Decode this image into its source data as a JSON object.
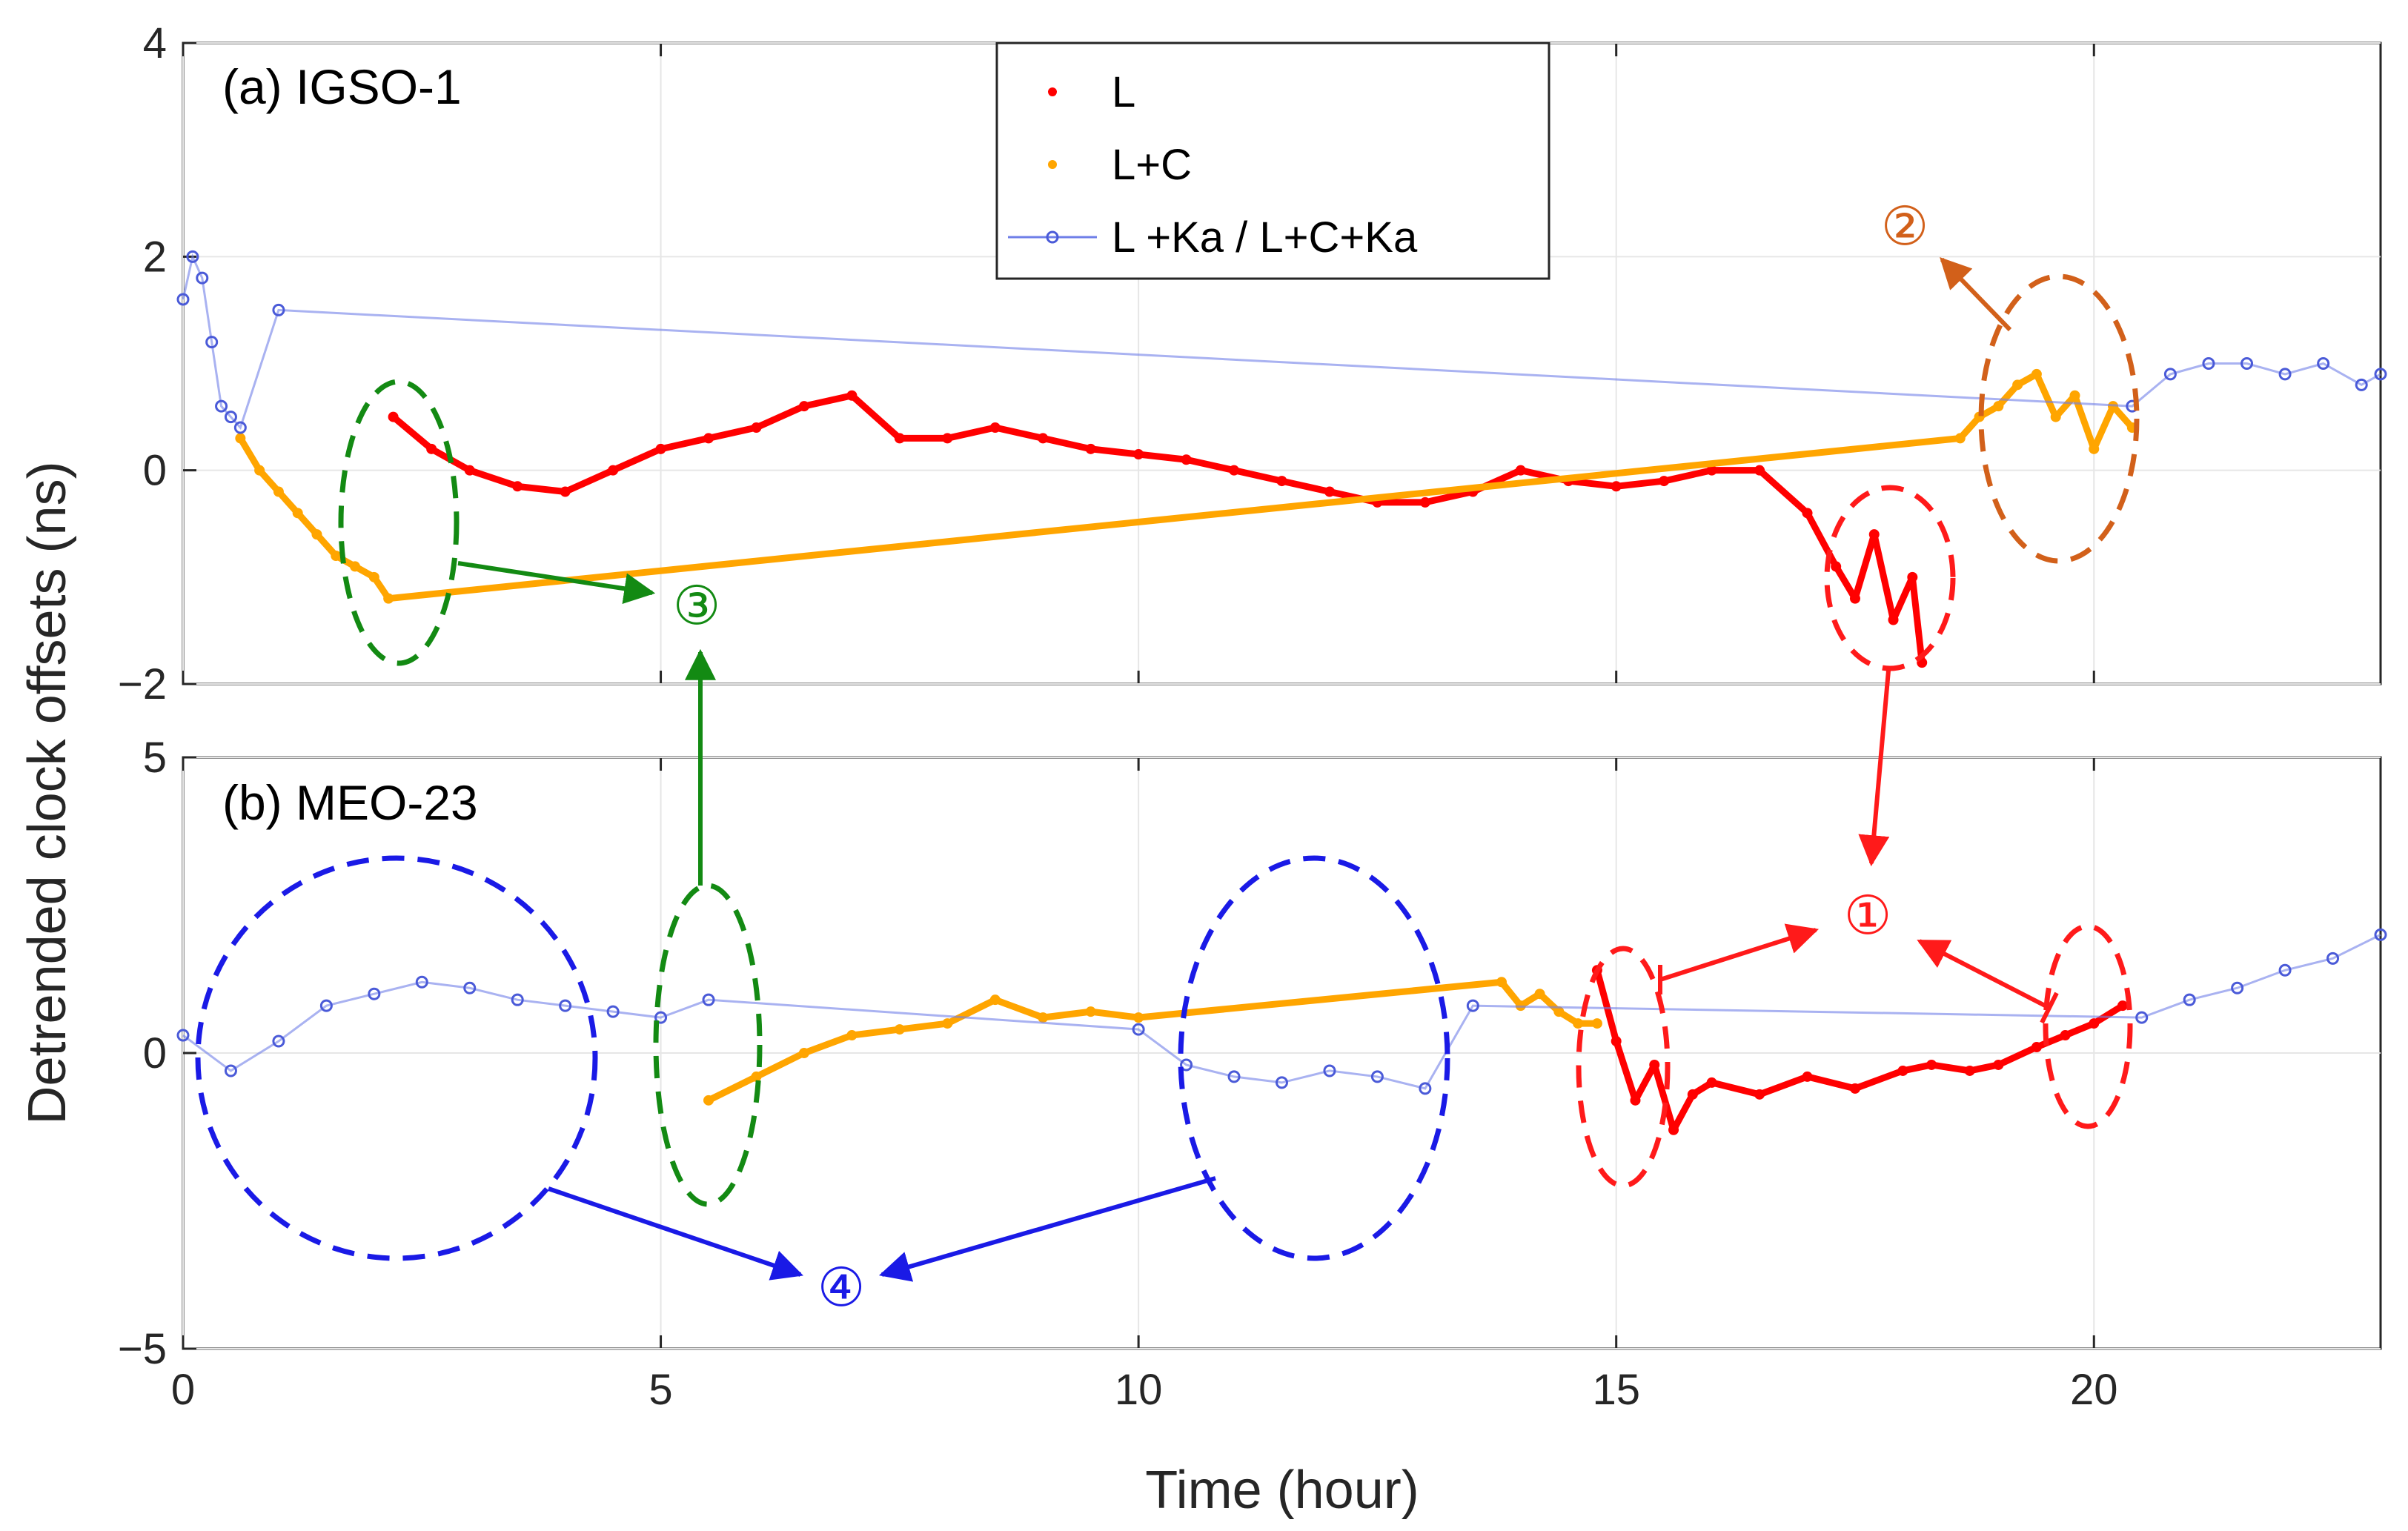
{
  "chart_data": {
    "type": "scatter",
    "xlabel": "Time (hour)",
    "ylabel": "Detrended  clock offsets (ns)",
    "xlim": [
      0,
      23
    ],
    "x_ticks": [
      "0",
      "5",
      "10",
      "15",
      "20"
    ],
    "legend": {
      "position": "top-center",
      "entries": [
        {
          "label": "L",
          "color": "#ff0000",
          "marker": "dot"
        },
        {
          "label": "L+C",
          "color": "#ffa500",
          "marker": "dot"
        },
        {
          "label": "L +Ka / L+C+Ka",
          "color": "#6f7fe8",
          "marker": "line-circle"
        }
      ]
    },
    "panels": [
      {
        "title": "(a) IGSO-1",
        "ylim": [
          -2,
          4
        ],
        "y_ticks": [
          "−2",
          "0",
          "2",
          "4"
        ],
        "series": [
          {
            "name": "L",
            "color": "#ff0000",
            "x": [
              2.2,
              2.6,
              3.0,
              3.5,
              4.0,
              4.5,
              5.0,
              5.5,
              6.0,
              6.5,
              7.0,
              7.5,
              8.0,
              8.5,
              9.0,
              9.5,
              10.0,
              10.5,
              11.0,
              11.5,
              12.0,
              12.5,
              13.0,
              13.5,
              14.0,
              14.5,
              15.0,
              15.5,
              16.0,
              16.5,
              17.0,
              17.3,
              17.5,
              17.7,
              17.9,
              18.1,
              18.2
            ],
            "y": [
              0.5,
              0.2,
              0.0,
              -0.15,
              -0.2,
              0.0,
              0.2,
              0.3,
              0.4,
              0.6,
              0.7,
              0.3,
              0.3,
              0.4,
              0.3,
              0.2,
              0.15,
              0.1,
              0.0,
              -0.1,
              -0.2,
              -0.3,
              -0.3,
              -0.2,
              0.0,
              -0.1,
              -0.15,
              -0.1,
              0.0,
              0.0,
              -0.4,
              -0.9,
              -1.2,
              -0.6,
              -1.4,
              -1.0,
              -1.8
            ]
          },
          {
            "name": "L+C",
            "color": "#ffa500",
            "x": [
              0.6,
              0.8,
              1.0,
              1.2,
              1.4,
              1.6,
              1.8,
              2.0,
              2.15,
              18.6,
              18.8,
              19.0,
              19.2,
              19.4,
              19.6,
              19.8,
              20.0,
              20.2,
              20.4
            ],
            "y": [
              0.3,
              0.0,
              -0.2,
              -0.4,
              -0.6,
              -0.8,
              -0.9,
              -1.0,
              -1.2,
              0.3,
              0.5,
              0.6,
              0.8,
              0.9,
              0.5,
              0.7,
              0.2,
              0.6,
              0.4
            ]
          },
          {
            "name": "L +Ka / L+C+Ka",
            "color": "#6f7fe8",
            "x": [
              0.0,
              0.1,
              0.2,
              0.3,
              0.4,
              0.5,
              0.6,
              1.0,
              20.4,
              20.8,
              21.2,
              21.6,
              22.0,
              22.4,
              22.8,
              23.0
            ],
            "y": [
              1.6,
              2.0,
              1.8,
              1.2,
              0.6,
              0.5,
              0.4,
              1.5,
              0.6,
              0.9,
              1.0,
              1.0,
              0.9,
              1.0,
              0.8,
              0.9
            ]
          }
        ]
      },
      {
        "title": "(b) MEO-23",
        "ylim": [
          -5,
          5
        ],
        "y_ticks": [
          "−5",
          "0",
          "5"
        ],
        "series": [
          {
            "name": "L",
            "color": "#ff0000",
            "x": [
              14.8,
              15.0,
              15.2,
              15.4,
              15.6,
              15.8,
              16.0,
              16.5,
              17.0,
              17.5,
              18.0,
              18.3,
              18.7,
              19.0,
              19.4,
              19.7,
              20.0,
              20.3
            ],
            "y": [
              1.4,
              0.2,
              -0.8,
              -0.2,
              -1.3,
              -0.7,
              -0.5,
              -0.7,
              -0.4,
              -0.6,
              -0.3,
              -0.2,
              -0.3,
              -0.2,
              0.1,
              0.3,
              0.5,
              0.8
            ]
          },
          {
            "name": "L+C",
            "color": "#ffa500",
            "x": [
              5.5,
              6.0,
              6.5,
              7.0,
              7.5,
              8.0,
              8.5,
              9.0,
              9.5,
              10.0,
              13.8,
              14.0,
              14.2,
              14.4,
              14.6,
              14.8
            ],
            "y": [
              -0.8,
              -0.4,
              0.0,
              0.3,
              0.4,
              0.5,
              0.9,
              0.6,
              0.7,
              0.6,
              1.2,
              0.8,
              1.0,
              0.7,
              0.5,
              0.5
            ]
          },
          {
            "name": "L +Ka / L+C+Ka",
            "color": "#6f7fe8",
            "x": [
              0.0,
              0.5,
              1.0,
              1.5,
              2.0,
              2.5,
              3.0,
              3.5,
              4.0,
              4.5,
              5.0,
              5.5,
              10.0,
              10.5,
              11.0,
              11.5,
              12.0,
              12.5,
              13.0,
              13.5,
              20.5,
              21.0,
              21.5,
              22.0,
              22.5,
              23.0
            ],
            "y": [
              0.3,
              -0.3,
              0.2,
              0.8,
              1.0,
              1.2,
              1.1,
              0.9,
              0.8,
              0.7,
              0.6,
              0.9,
              0.4,
              -0.2,
              -0.4,
              -0.5,
              -0.3,
              -0.4,
              -0.6,
              0.8,
              0.6,
              0.9,
              1.1,
              1.4,
              1.6,
              2.0
            ]
          }
        ]
      }
    ],
    "annotations": [
      "①",
      "②",
      "③",
      "④"
    ]
  }
}
